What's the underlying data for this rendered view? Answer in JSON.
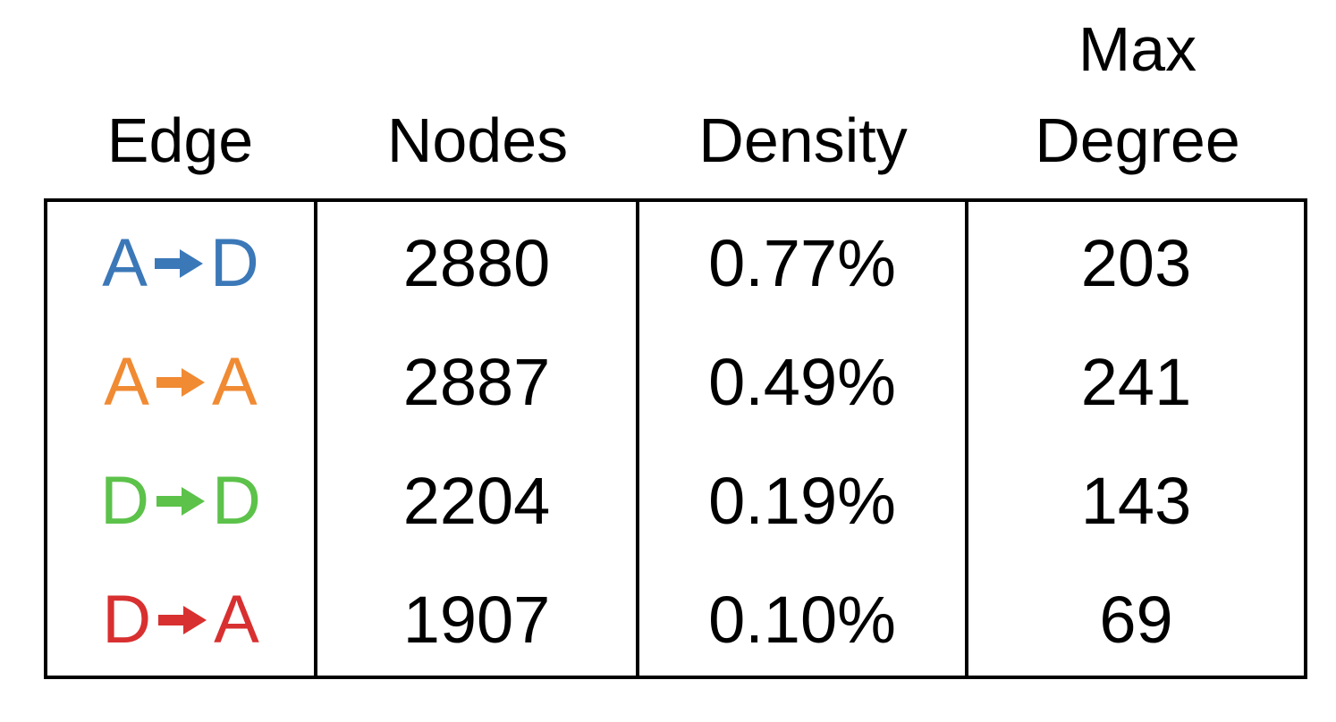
{
  "chart_data": {
    "type": "table",
    "columns": [
      "Edge",
      "Nodes",
      "Density",
      "Max\nDegree"
    ],
    "rows": [
      {
        "edge_from": "A",
        "edge_to": "D",
        "color": "#3b78b8",
        "nodes": "2880",
        "density": "0.77%",
        "max_degree": "203"
      },
      {
        "edge_from": "A",
        "edge_to": "A",
        "color": "#f08a33",
        "nodes": "2887",
        "density": "0.49%",
        "max_degree": "241"
      },
      {
        "edge_from": "D",
        "edge_to": "D",
        "color": "#5cc24a",
        "nodes": "2204",
        "density": "0.19%",
        "max_degree": "143"
      },
      {
        "edge_from": "D",
        "edge_to": "A",
        "color": "#d83030",
        "nodes": "1907",
        "density": "0.10%",
        "max_degree": "69"
      }
    ],
    "arrow_icon": "right-arrow-icon"
  }
}
